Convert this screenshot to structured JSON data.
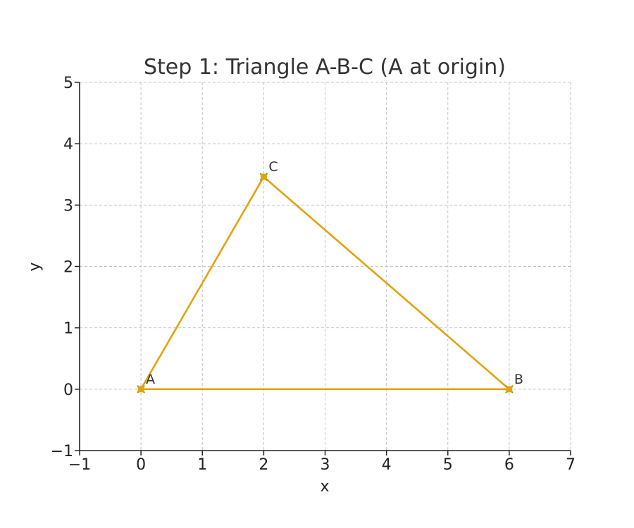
{
  "chart_data": {
    "type": "line",
    "title": "Step 1: Triangle A-B-C (A at origin)",
    "xlabel": "x",
    "ylabel": "y",
    "xlim": [
      -1,
      7
    ],
    "ylim": [
      -1,
      5
    ],
    "xticks": [
      -1,
      0,
      1,
      2,
      3,
      4,
      5,
      6,
      7
    ],
    "yticks": [
      -1,
      0,
      1,
      2,
      3,
      4,
      5
    ],
    "xtick_labels": [
      "−1",
      "0",
      "1",
      "2",
      "3",
      "4",
      "5",
      "6",
      "7"
    ],
    "ytick_labels": [
      "−1",
      "0",
      "1",
      "2",
      "3",
      "4",
      "5"
    ],
    "grid": true,
    "points": [
      {
        "label": "A",
        "x": 0,
        "y": 0
      },
      {
        "label": "B",
        "x": 6,
        "y": 0
      },
      {
        "label": "C",
        "x": 2,
        "y": 3.46
      }
    ],
    "series": [
      {
        "closed": true,
        "color": "#e3a20f",
        "marker_color": "#2ca02c",
        "x": [
          0,
          6,
          2
        ],
        "y": [
          0,
          0,
          3.46
        ]
      }
    ]
  }
}
